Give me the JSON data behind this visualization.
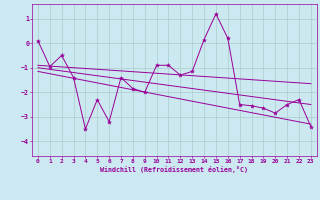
{
  "xlabel": "Windchill (Refroidissement éolien,°C)",
  "bg_color": "#cce8f0",
  "line_color": "#990099",
  "grid_color": "#aacccc",
  "xlim": [
    -0.5,
    23.5
  ],
  "ylim": [
    -4.6,
    1.6
  ],
  "yticks": [
    1,
    0,
    -1,
    -2,
    -3,
    -4
  ],
  "xticks": [
    0,
    1,
    2,
    3,
    4,
    5,
    6,
    7,
    8,
    9,
    10,
    11,
    12,
    13,
    14,
    15,
    16,
    17,
    18,
    19,
    20,
    21,
    22,
    23
  ],
  "main_x": [
    0,
    1,
    2,
    3,
    4,
    5,
    6,
    7,
    8,
    9,
    10,
    11,
    12,
    13,
    14,
    15,
    16,
    17,
    18,
    19,
    20,
    21,
    22,
    23
  ],
  "main_y": [
    0.1,
    -0.95,
    -0.5,
    -1.4,
    -3.5,
    -2.3,
    -3.2,
    -1.4,
    -1.85,
    -2.0,
    -0.9,
    -0.9,
    -1.3,
    -1.15,
    0.15,
    1.2,
    0.2,
    -2.5,
    -2.55,
    -2.65,
    -2.85,
    -2.5,
    -2.3,
    -3.4
  ],
  "upper_line_x": [
    0,
    23
  ],
  "upper_line_y": [
    -0.9,
    -1.65
  ],
  "lower_line_x": [
    0,
    23
  ],
  "lower_line_y": [
    -1.15,
    -3.3
  ],
  "mid_line_x": [
    0,
    23
  ],
  "mid_line_y": [
    -1.0,
    -2.5
  ]
}
